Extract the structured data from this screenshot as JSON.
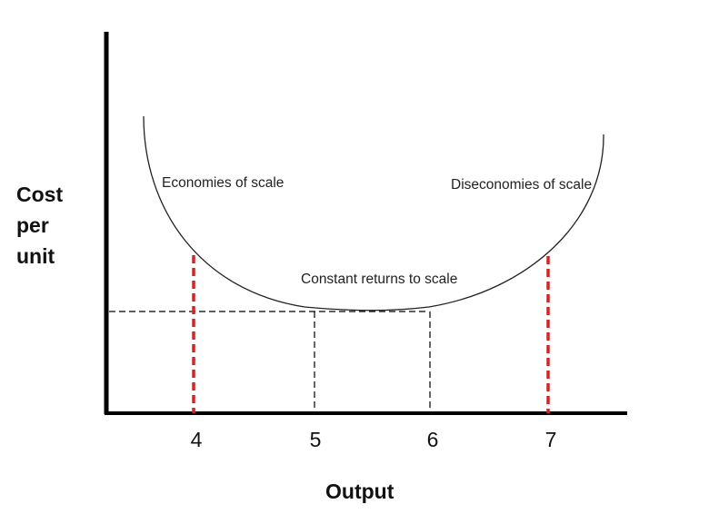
{
  "y_axis_label": [
    "Cost",
    "per",
    "unit"
  ],
  "x_axis_label": "Output",
  "tick_labels": [
    "4",
    "5",
    "6",
    "7"
  ],
  "annotations": {
    "economies": "Economies of scale",
    "diseconomies": "Diseconomies of scale",
    "constant": "Constant returns to scale"
  },
  "colors": {
    "axis": "#000000",
    "curve": "#222222",
    "guide": "#e02020",
    "dashed": "#000000"
  }
}
